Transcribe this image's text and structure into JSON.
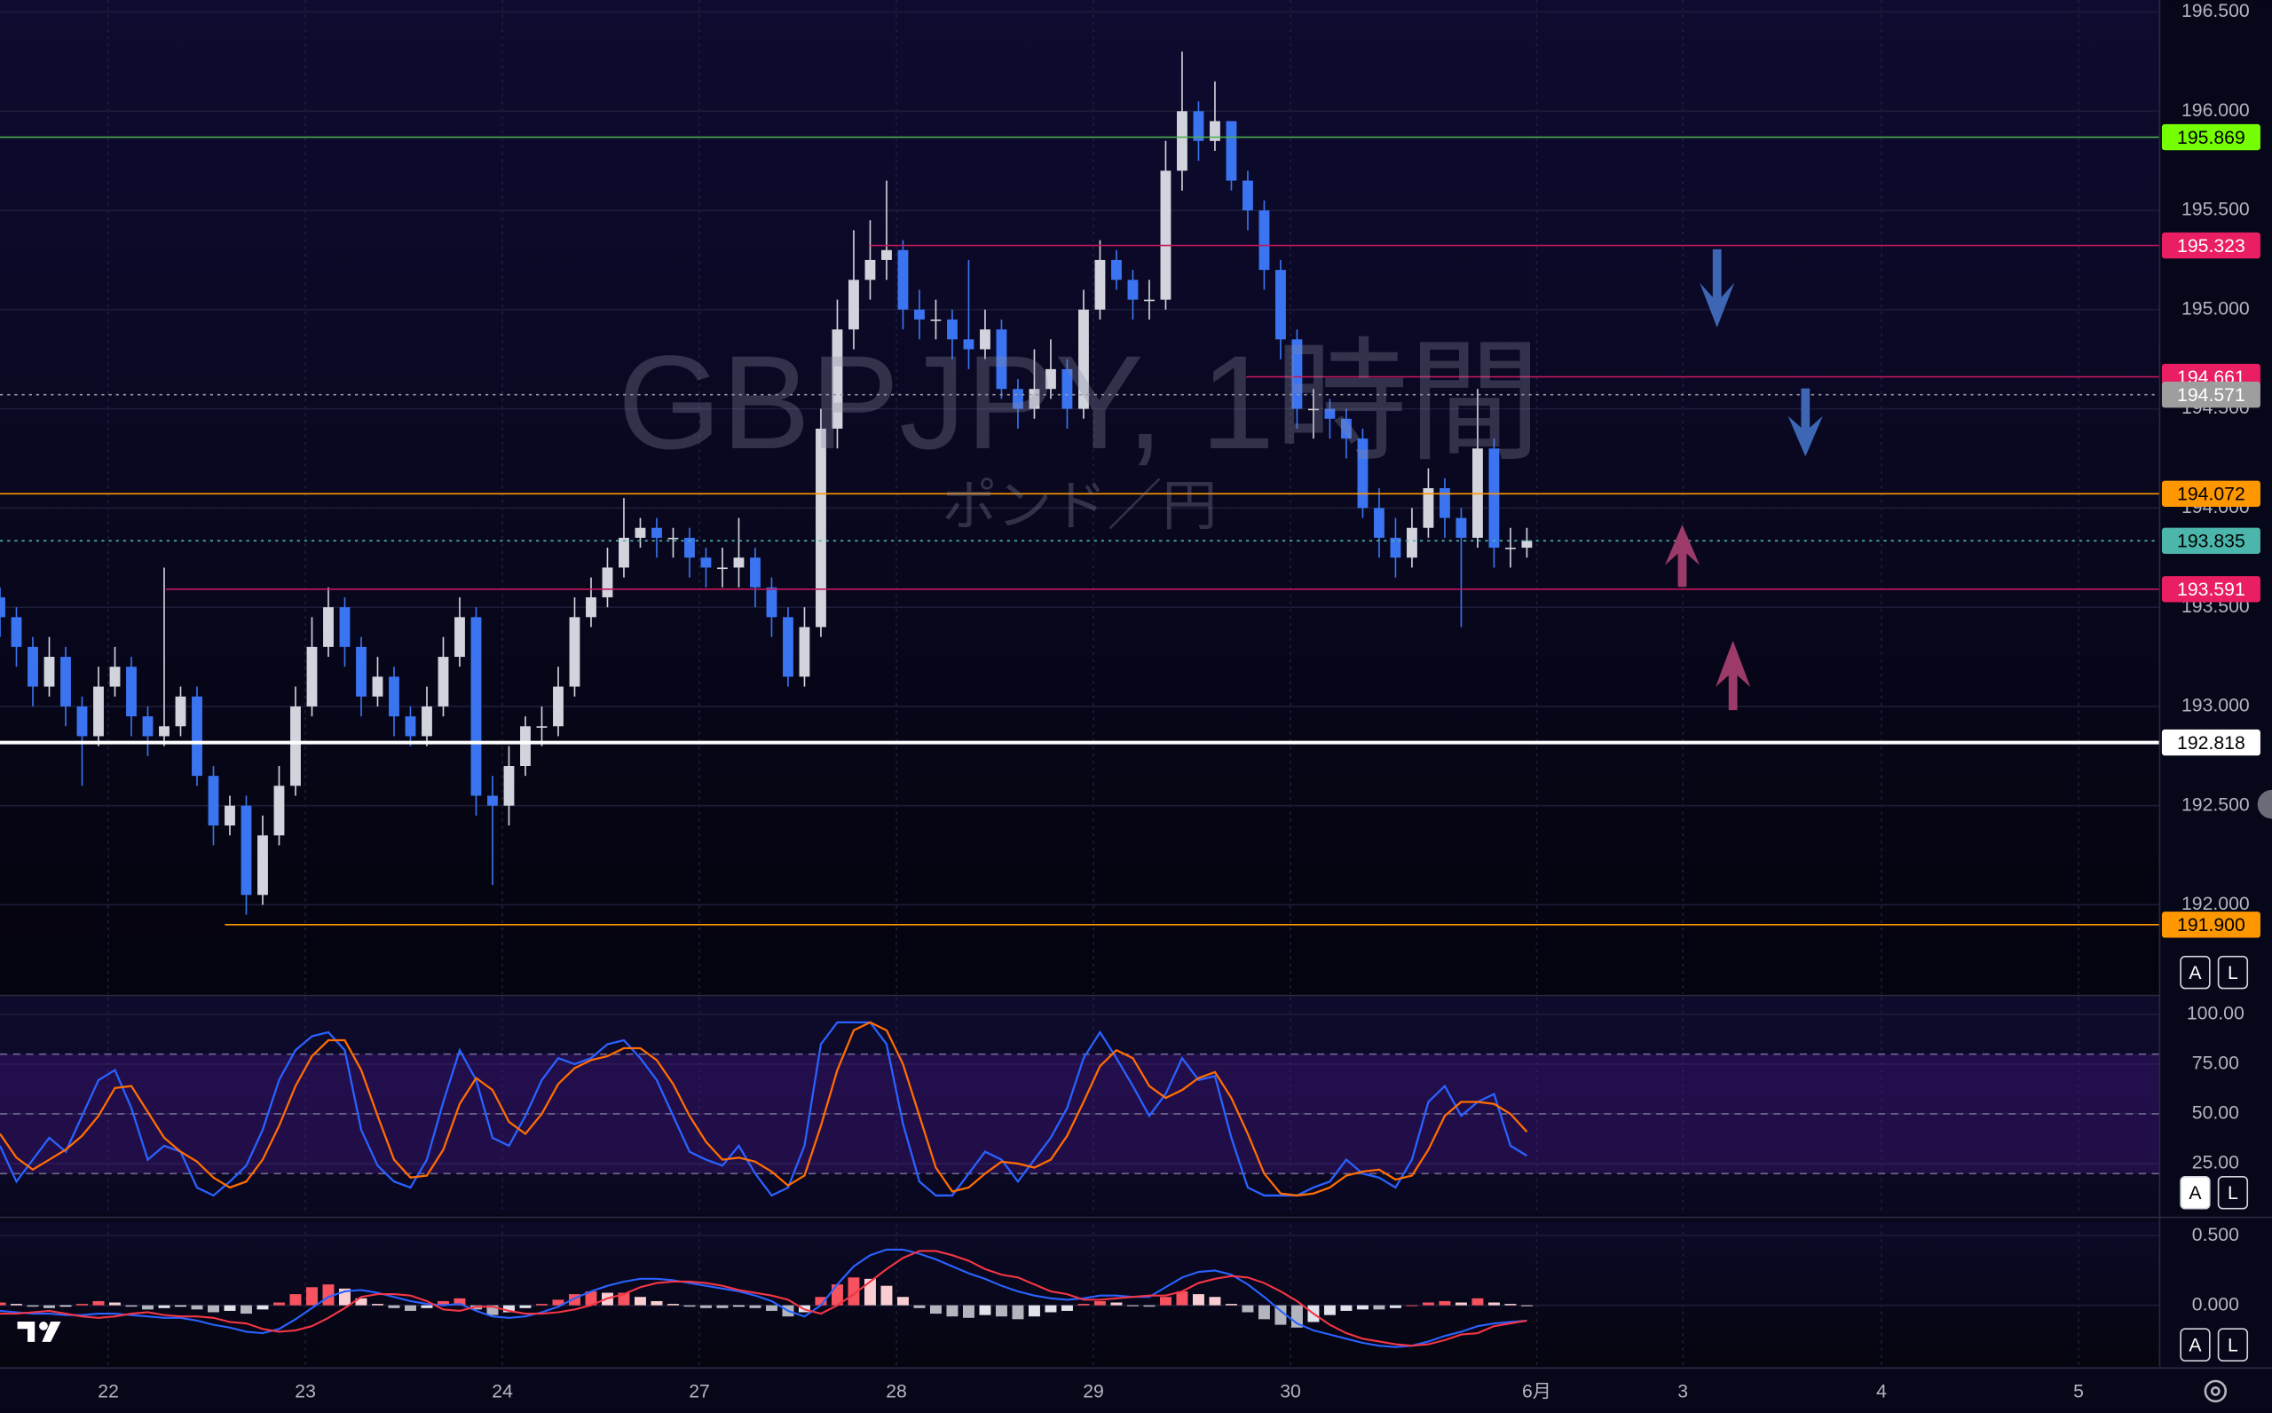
{
  "chart_data": [
    {
      "type": "candlestick",
      "title": "GBPJPY, 1時間",
      "subtitle": "ポンド／円",
      "up_color": "#d1d4dc",
      "down_color": "#3b74f0",
      "open": [
        193.55,
        193.45,
        193.3,
        193.1,
        193.25,
        193.0,
        192.85,
        193.1,
        193.2,
        192.95,
        192.85,
        192.9,
        193.05,
        192.65,
        192.4,
        192.5,
        192.05,
        192.35,
        192.6,
        193.0,
        193.3,
        193.5,
        193.3,
        193.05,
        193.15,
        192.95,
        192.85,
        193.0,
        193.25,
        193.45,
        192.55,
        192.5,
        192.7,
        192.9,
        192.9,
        193.1,
        193.45,
        193.55,
        193.7,
        193.85,
        193.9,
        193.85,
        193.85,
        193.75,
        193.7,
        193.7,
        193.75,
        193.6,
        193.45,
        193.15,
        193.4,
        194.4,
        194.9,
        195.15,
        195.25,
        195.3,
        195.0,
        194.95,
        194.95,
        194.85,
        194.8,
        194.9,
        194.6,
        194.5,
        194.6,
        194.7,
        194.5,
        195.0,
        195.25,
        195.15,
        195.05,
        195.05,
        195.7,
        196.0,
        195.85,
        195.95,
        195.65,
        195.5,
        195.2,
        194.85,
        194.5,
        194.5,
        194.45,
        194.35,
        194.0,
        193.85,
        193.75,
        193.9,
        194.1,
        193.95,
        193.85,
        194.3,
        193.8,
        193.8
      ],
      "high": [
        193.6,
        193.5,
        193.35,
        193.35,
        193.3,
        193.05,
        193.2,
        193.3,
        193.25,
        193.0,
        193.7,
        193.1,
        193.1,
        192.7,
        192.55,
        192.55,
        192.45,
        192.7,
        193.1,
        193.45,
        193.6,
        193.55,
        193.35,
        193.25,
        193.2,
        193.0,
        193.1,
        193.35,
        193.55,
        193.5,
        192.65,
        192.8,
        192.95,
        193.0,
        193.2,
        193.55,
        193.65,
        193.8,
        194.05,
        193.95,
        193.95,
        193.9,
        193.9,
        193.8,
        193.8,
        193.95,
        193.8,
        193.65,
        193.5,
        193.5,
        194.5,
        195.05,
        195.4,
        195.45,
        195.65,
        195.35,
        195.1,
        195.05,
        195.0,
        195.25,
        195.0,
        194.95,
        194.65,
        194.8,
        194.85,
        194.75,
        195.1,
        195.35,
        195.3,
        195.2,
        195.15,
        195.85,
        196.3,
        196.05,
        196.15,
        195.95,
        195.7,
        195.55,
        195.25,
        194.9,
        194.6,
        194.55,
        194.5,
        194.4,
        194.1,
        193.95,
        194.0,
        194.2,
        194.15,
        194.0,
        194.6,
        194.35,
        193.9,
        193.9
      ],
      "low": [
        193.35,
        193.2,
        193.0,
        193.05,
        192.9,
        192.6,
        192.8,
        193.05,
        192.85,
        192.75,
        192.8,
        192.85,
        192.6,
        192.3,
        192.35,
        191.95,
        192.0,
        192.3,
        192.55,
        192.95,
        193.25,
        193.2,
        192.95,
        193.0,
        192.85,
        192.8,
        192.8,
        192.95,
        193.2,
        192.45,
        192.1,
        192.4,
        192.65,
        192.8,
        192.85,
        193.05,
        193.4,
        193.5,
        193.65,
        193.8,
        193.75,
        193.75,
        193.65,
        193.6,
        193.6,
        193.6,
        193.5,
        193.35,
        193.1,
        193.1,
        193.35,
        194.3,
        194.8,
        195.05,
        195.15,
        194.9,
        194.85,
        194.85,
        194.75,
        194.7,
        194.75,
        194.55,
        194.4,
        194.45,
        194.55,
        194.4,
        194.45,
        194.95,
        195.1,
        194.95,
        194.95,
        195.0,
        195.6,
        195.75,
        195.8,
        195.6,
        195.4,
        195.1,
        194.75,
        194.4,
        194.35,
        194.35,
        194.25,
        193.95,
        193.75,
        193.65,
        193.7,
        193.85,
        193.85,
        193.4,
        193.8,
        193.7,
        193.7,
        193.75
      ],
      "close": [
        193.45,
        193.3,
        193.1,
        193.25,
        193.0,
        192.85,
        193.1,
        193.2,
        192.95,
        192.85,
        192.9,
        193.05,
        192.65,
        192.4,
        192.5,
        192.05,
        192.35,
        192.6,
        193.0,
        193.3,
        193.5,
        193.3,
        193.05,
        193.15,
        192.95,
        192.85,
        193.0,
        193.25,
        193.45,
        192.55,
        192.5,
        192.7,
        192.9,
        192.9,
        193.1,
        193.45,
        193.55,
        193.7,
        193.85,
        193.9,
        193.85,
        193.85,
        193.75,
        193.7,
        193.7,
        193.75,
        193.6,
        193.45,
        193.15,
        193.4,
        194.4,
        194.9,
        195.15,
        195.25,
        195.3,
        195.0,
        194.95,
        194.95,
        194.85,
        194.8,
        194.9,
        194.6,
        194.5,
        194.6,
        194.7,
        194.5,
        195.0,
        195.25,
        195.15,
        195.05,
        195.05,
        195.7,
        196.0,
        195.85,
        195.95,
        195.65,
        195.5,
        195.2,
        194.85,
        194.5,
        194.5,
        194.45,
        194.35,
        194.0,
        193.85,
        193.75,
        193.9,
        194.1,
        193.95,
        193.85,
        194.3,
        193.8,
        193.8,
        193.835
      ],
      "xlim": [
        0,
        131.5
      ],
      "xticks": [
        {
          "value": 6.6,
          "label": "22"
        },
        {
          "value": 18.6,
          "label": "23"
        },
        {
          "value": 30.6,
          "label": "24"
        },
        {
          "value": 42.6,
          "label": "27"
        },
        {
          "value": 54.6,
          "label": "28"
        },
        {
          "value": 66.6,
          "label": "29"
        },
        {
          "value": 78.6,
          "label": "30"
        },
        {
          "value": 93.6,
          "label": "6月"
        },
        {
          "value": 102.5,
          "label": "3"
        },
        {
          "value": 114.6,
          "label": "4"
        },
        {
          "value": 126.6,
          "label": "5"
        }
      ],
      "ylim": [
        191.55,
        196.56
      ],
      "yticks": [
        {
          "value": 192,
          "label": "192.000"
        },
        {
          "value": 192.5,
          "label": "192.500"
        },
        {
          "value": 193,
          "label": "193.000"
        },
        {
          "value": 193.5,
          "label": "193.500"
        },
        {
          "value": 194,
          "label": "194.000"
        },
        {
          "value": 194.5,
          "label": "194.500"
        },
        {
          "value": 195,
          "label": "195.000"
        },
        {
          "value": 195.5,
          "label": "195.500"
        },
        {
          "value": 196,
          "label": "196.000"
        },
        {
          "value": 196.5,
          "label": "196.500"
        }
      ],
      "grid": true,
      "levels": [
        {
          "value": 195.869,
          "color": "#4caf50",
          "label_color": "#76ff03",
          "text_color": "#000000",
          "style": "solid",
          "width": 1
        },
        {
          "value": 195.323,
          "color": "#c2185b",
          "label_color": "#e91e63",
          "text_color": "#ffffff",
          "style": "solid",
          "width": 1,
          "x_start": 53
        },
        {
          "value": 194.661,
          "color": "#c2185b",
          "label_color": "#e91e63",
          "text_color": "#ffffff",
          "style": "solid",
          "width": 1,
          "x_start": 75.9
        },
        {
          "value": 194.571,
          "color": "#9598a1",
          "label_color": "#9e9e9e",
          "text_color": "#ffffff",
          "style": "dotted",
          "width": 1
        },
        {
          "value": 194.072,
          "color": "#ff9800",
          "label_color": "#ff9800",
          "text_color": "#000000",
          "style": "solid",
          "width": 1
        },
        {
          "value": 193.835,
          "color": "#4db6ac",
          "label_color": "#4db6ac",
          "text_color": "#000000",
          "style": "dotted",
          "width": 1
        },
        {
          "value": 193.591,
          "color": "#c2185b",
          "label_color": "#e91e63",
          "text_color": "#ffffff",
          "style": "solid",
          "width": 1,
          "x_start": 10.1
        },
        {
          "value": 192.818,
          "color": "#ffffff",
          "label_color": "#ffffff",
          "text_color": "#000000",
          "style": "solid",
          "width": 2.5
        },
        {
          "value": 191.9,
          "label": "191.900",
          "color": "#ff9800",
          "label_color": "#ff9800",
          "text_color": "#000000",
          "style": "solid",
          "width": 1,
          "x_start": 13.7
        }
      ]
    },
    {
      "type": "line",
      "series": [
        {
          "color": "#2962ff",
          "values": [
            34,
            16,
            27,
            38,
            31,
            49,
            67,
            72,
            53,
            27,
            34,
            31,
            13,
            9,
            16,
            24,
            42,
            67,
            82,
            89,
            91,
            82,
            42,
            24,
            16,
            13,
            27,
            56,
            82,
            67,
            38,
            34,
            49,
            67,
            78,
            75,
            78,
            85,
            87,
            78,
            67,
            49,
            31,
            27,
            24,
            34,
            20,
            9,
            13,
            34,
            85,
            96,
            96,
            96,
            85,
            45,
            16,
            9,
            9,
            20,
            31,
            27,
            16,
            27,
            38,
            53,
            78,
            91,
            78,
            64,
            49,
            60,
            78,
            67,
            69,
            38,
            13,
            9,
            9,
            9,
            13,
            16,
            27,
            20,
            18,
            13,
            27,
            56,
            64,
            49,
            56,
            60,
            34,
            29
          ]
        },
        {
          "color": "#ff6d00",
          "values": [
            40,
            28,
            22,
            27,
            32,
            39,
            49,
            63,
            64,
            51,
            38,
            31,
            26,
            18,
            13,
            16,
            27,
            44,
            64,
            79,
            87,
            87,
            72,
            49,
            27,
            18,
            19,
            32,
            55,
            68,
            62,
            46,
            40,
            50,
            65,
            73,
            77,
            79,
            83,
            83,
            77,
            65,
            49,
            36,
            27,
            28,
            26,
            21,
            14,
            19,
            44,
            72,
            92,
            96,
            92,
            75,
            49,
            23,
            11,
            13,
            20,
            26,
            25,
            23,
            27,
            39,
            56,
            74,
            82,
            78,
            64,
            58,
            62,
            68,
            71,
            58,
            40,
            20,
            10,
            9,
            10,
            13,
            19,
            21,
            22,
            17,
            19,
            32,
            49,
            56,
            56,
            55,
            50,
            41
          ]
        }
      ],
      "ylim": [
        -0.5,
        108.7
      ],
      "yticks": [
        {
          "value": 25,
          "label": "25.00"
        },
        {
          "value": 50,
          "label": "50.00"
        },
        {
          "value": 75,
          "label": "75.00"
        },
        {
          "value": 100,
          "label": "100.00"
        }
      ],
      "band": [
        20,
        80
      ],
      "band_color": "#4a1a8c",
      "hlines": [
        20,
        50,
        80
      ]
    },
    {
      "type": "macd",
      "histogram": [
        0.02,
        0.01,
        -0.01,
        -0.02,
        -0.01,
        0.01,
        0.03,
        0.02,
        -0.01,
        -0.03,
        -0.02,
        -0.01,
        -0.03,
        -0.05,
        -0.04,
        -0.06,
        -0.03,
        0.02,
        0.08,
        0.13,
        0.15,
        0.12,
        0.05,
        0.01,
        -0.02,
        -0.04,
        -0.02,
        0.03,
        0.05,
        -0.03,
        -0.07,
        -0.05,
        -0.02,
        0.01,
        0.04,
        0.08,
        0.1,
        0.09,
        0.09,
        0.06,
        0.03,
        0.01,
        -0.01,
        -0.02,
        -0.02,
        -0.01,
        -0.02,
        -0.04,
        -0.08,
        -0.05,
        0.06,
        0.15,
        0.2,
        0.19,
        0.14,
        0.06,
        -0.02,
        -0.06,
        -0.08,
        -0.09,
        -0.07,
        -0.08,
        -0.1,
        -0.08,
        -0.05,
        -0.04,
        0.01,
        0.03,
        0.02,
        0.0,
        -0.01,
        0.06,
        0.1,
        0.08,
        0.06,
        0.01,
        -0.05,
        -0.1,
        -0.14,
        -0.16,
        -0.12,
        -0.07,
        -0.04,
        -0.03,
        -0.03,
        -0.02,
        0.0,
        0.02,
        0.03,
        0.02,
        0.05,
        0.02,
        0.01,
        0.0
      ],
      "histogram_colors": {
        "pos_up": "#f7525f",
        "pos_down": "#facdd2",
        "neg_down": "#b2b5be",
        "neg_up": "#e0e3eb"
      },
      "series": [
        {
          "color": "#2962ff",
          "values": [
            -0.04,
            -0.05,
            -0.06,
            -0.06,
            -0.07,
            -0.07,
            -0.06,
            -0.06,
            -0.07,
            -0.08,
            -0.09,
            -0.09,
            -0.11,
            -0.14,
            -0.16,
            -0.19,
            -0.2,
            -0.17,
            -0.1,
            -0.02,
            0.06,
            0.1,
            0.11,
            0.09,
            0.06,
            0.03,
            0.01,
            0.0,
            0.01,
            -0.04,
            -0.08,
            -0.09,
            -0.08,
            -0.05,
            -0.01,
            0.05,
            0.1,
            0.14,
            0.17,
            0.19,
            0.19,
            0.18,
            0.16,
            0.14,
            0.12,
            0.1,
            0.07,
            0.03,
            -0.04,
            -0.08,
            0.0,
            0.15,
            0.28,
            0.36,
            0.4,
            0.4,
            0.37,
            0.33,
            0.28,
            0.23,
            0.19,
            0.14,
            0.1,
            0.07,
            0.05,
            0.04,
            0.05,
            0.07,
            0.07,
            0.06,
            0.06,
            0.13,
            0.2,
            0.24,
            0.25,
            0.22,
            0.15,
            0.06,
            -0.04,
            -0.13,
            -0.18,
            -0.21,
            -0.24,
            -0.27,
            -0.29,
            -0.3,
            -0.29,
            -0.26,
            -0.22,
            -0.19,
            -0.15,
            -0.13,
            -0.12,
            -0.11
          ]
        },
        {
          "color": "#f23645",
          "values": [
            -0.06,
            -0.06,
            -0.05,
            -0.04,
            -0.06,
            -0.08,
            -0.09,
            -0.08,
            -0.06,
            -0.05,
            -0.07,
            -0.08,
            -0.08,
            -0.09,
            -0.12,
            -0.13,
            -0.17,
            -0.19,
            -0.18,
            -0.15,
            -0.09,
            -0.02,
            0.06,
            0.08,
            0.08,
            0.07,
            0.03,
            -0.03,
            -0.04,
            -0.01,
            -0.01,
            -0.04,
            -0.06,
            -0.06,
            -0.05,
            -0.03,
            0.0,
            0.05,
            0.08,
            0.13,
            0.16,
            0.17,
            0.17,
            0.16,
            0.14,
            0.11,
            0.09,
            0.07,
            0.04,
            -0.03,
            -0.06,
            0.0,
            0.08,
            0.17,
            0.26,
            0.34,
            0.39,
            0.39,
            0.36,
            0.32,
            0.26,
            0.22,
            0.2,
            0.15,
            0.1,
            0.08,
            0.04,
            0.04,
            0.05,
            0.06,
            0.07,
            0.07,
            0.1,
            0.16,
            0.19,
            0.21,
            0.2,
            0.16,
            0.1,
            0.03,
            -0.06,
            -0.14,
            -0.2,
            -0.24,
            -0.26,
            -0.28,
            -0.29,
            -0.28,
            -0.25,
            -0.21,
            -0.2,
            -0.15,
            -0.13,
            -0.11
          ]
        }
      ],
      "ylim": [
        -0.44,
        0.58
      ],
      "yticks": [
        {
          "value": 0,
          "label": "0.000"
        },
        {
          "value": 0.5,
          "label": "0.500"
        }
      ]
    }
  ],
  "ui": {
    "scale_buttons": [
      "A",
      "L"
    ]
  }
}
